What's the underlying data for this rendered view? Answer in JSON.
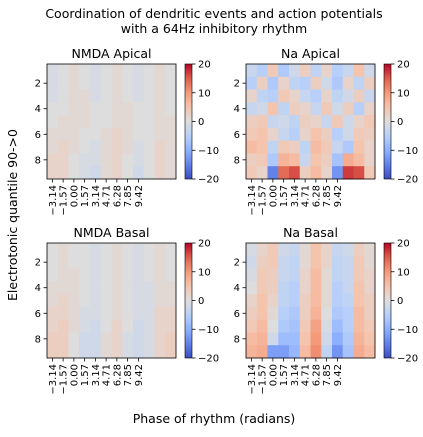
{
  "figure": {
    "title_line1": "Coordination of dendritic events and action potentials",
    "title_line2": "with a 64Hz inhibitory rhythm",
    "ylabel": "Electrotonic quantile 90->0",
    "xlabel": "Phase of rhythm (radians)"
  },
  "chart_data": [
    {
      "type": "heatmap",
      "title": "NMDA Apical",
      "x_ticks": [
        "−3.14",
        "−1.57",
        "0.00",
        "1.57",
        "3.14",
        "4.71",
        "6.28",
        "7.85",
        "9.42"
      ],
      "y_ticks": [
        "2",
        "4",
        "6",
        "8"
      ],
      "colorbar_ticks": [
        "20",
        "10",
        "0",
        "−10",
        "−20"
      ],
      "clim": [
        -20,
        20
      ],
      "colormap": "coolwarm",
      "values": [
        [
          -1,
          0,
          1,
          0,
          -1,
          0,
          1,
          0,
          -1,
          0,
          1,
          0
        ],
        [
          -1,
          0,
          1,
          0,
          -1,
          0,
          1,
          0,
          -1,
          0,
          1,
          0
        ],
        [
          -1,
          0,
          1,
          1,
          -1,
          0,
          1,
          0,
          -1,
          0,
          1,
          0
        ],
        [
          0,
          0,
          1,
          1,
          0,
          0,
          1,
          1,
          0,
          0,
          1,
          0
        ],
        [
          0,
          1,
          1,
          1,
          0,
          0,
          1,
          1,
          0,
          0,
          1,
          1
        ],
        [
          1,
          1,
          1,
          0,
          0,
          1,
          2,
          1,
          0,
          0,
          1,
          1
        ],
        [
          1,
          2,
          1,
          0,
          -1,
          1,
          2,
          1,
          -1,
          0,
          2,
          1
        ],
        [
          2,
          2,
          0,
          -1,
          -1,
          1,
          2,
          0,
          -1,
          0,
          2,
          1
        ],
        [
          2,
          2,
          0,
          -1,
          -2,
          1,
          2,
          0,
          -2,
          0,
          2,
          1
        ]
      ]
    },
    {
      "type": "heatmap",
      "title": "Na Apical",
      "x_ticks": [
        "−3.14",
        "−1.57",
        "0.00",
        "1.57",
        "3.14",
        "4.71",
        "6.28",
        "7.85",
        "9.42"
      ],
      "y_ticks": [
        "2",
        "4",
        "6",
        "8"
      ],
      "colorbar_ticks": [
        "20",
        "10",
        "0",
        "−10",
        "−20"
      ],
      "clim": [
        -20,
        20
      ],
      "colormap": "coolwarm",
      "values": [
        [
          -3,
          -5,
          4,
          -6,
          -2,
          3,
          -4,
          2,
          -5,
          -3,
          5,
          -2
        ],
        [
          -5,
          3,
          -6,
          2,
          -4,
          -5,
          3,
          -2,
          -6,
          2,
          -4,
          3
        ],
        [
          2,
          -4,
          -5,
          4,
          2,
          -3,
          -5,
          2,
          -4,
          -2,
          3,
          -3
        ],
        [
          -3,
          -2,
          5,
          -4,
          3,
          2,
          -3,
          4,
          -2,
          3,
          -5,
          2
        ],
        [
          3,
          4,
          -3,
          -2,
          -4,
          3,
          2,
          -3,
          4,
          -2,
          2,
          4
        ],
        [
          4,
          5,
          2,
          -3,
          -5,
          2,
          5,
          3,
          -5,
          -2,
          4,
          3
        ],
        [
          6,
          5,
          -4,
          4,
          3,
          -4,
          6,
          4,
          -3,
          -6,
          5,
          2
        ],
        [
          3,
          4,
          -6,
          7,
          6,
          -3,
          5,
          3,
          -7,
          8,
          6,
          2
        ],
        [
          4,
          2,
          -15,
          14,
          16,
          3,
          6,
          2,
          -13,
          17,
          16,
          4
        ]
      ]
    },
    {
      "type": "heatmap",
      "title": "NMDA Basal",
      "x_ticks": [
        "−3.14",
        "−1.57",
        "0.00",
        "1.57",
        "3.14",
        "4.71",
        "6.28",
        "7.85",
        "9.42"
      ],
      "y_ticks": [
        "2",
        "4",
        "6",
        "8"
      ],
      "colorbar_ticks": [
        "20",
        "10",
        "0",
        "−10",
        "−20"
      ],
      "clim": [
        -20,
        20
      ],
      "colormap": "coolwarm",
      "values": [
        [
          0,
          1,
          0,
          0,
          -1,
          0,
          1,
          0,
          -1,
          0,
          1,
          0
        ],
        [
          0,
          1,
          0,
          0,
          -1,
          0,
          1,
          0,
          -1,
          0,
          1,
          0
        ],
        [
          0,
          1,
          1,
          0,
          -1,
          0,
          1,
          0,
          -1,
          0,
          1,
          0
        ],
        [
          1,
          1,
          1,
          0,
          -1,
          0,
          1,
          0,
          -1,
          -1,
          1,
          1
        ],
        [
          1,
          2,
          1,
          0,
          -1,
          0,
          1,
          0,
          -1,
          -1,
          1,
          1
        ],
        [
          2,
          2,
          1,
          -1,
          -1,
          0,
          1,
          0,
          -1,
          -1,
          2,
          2
        ],
        [
          2,
          3,
          1,
          -1,
          -2,
          0,
          2,
          0,
          -2,
          -1,
          2,
          2
        ],
        [
          3,
          3,
          0,
          -2,
          -2,
          1,
          2,
          -1,
          -2,
          -1,
          2,
          3
        ],
        [
          3,
          3,
          0,
          -2,
          -2,
          1,
          2,
          -1,
          -2,
          -1,
          2,
          3
        ]
      ]
    },
    {
      "type": "heatmap",
      "title": "Na Basal",
      "x_ticks": [
        "−3.14",
        "−1.57",
        "0.00",
        "1.57",
        "3.14",
        "4.71",
        "6.28",
        "7.85",
        "9.42"
      ],
      "y_ticks": [
        "2",
        "4",
        "6",
        "8"
      ],
      "colorbar_ticks": [
        "20",
        "10",
        "0",
        "−10",
        "−20"
      ],
      "clim": [
        -20,
        20
      ],
      "colormap": "coolwarm",
      "values": [
        [
          -1,
          2,
          4,
          -2,
          -3,
          1,
          5,
          2,
          -3,
          -2,
          3,
          1
        ],
        [
          -2,
          3,
          4,
          -3,
          -4,
          1,
          5,
          2,
          -4,
          -3,
          4,
          1
        ],
        [
          -1,
          4,
          3,
          -3,
          -4,
          2,
          6,
          1,
          -4,
          -3,
          4,
          2
        ],
        [
          0,
          4,
          3,
          -4,
          -5,
          2,
          6,
          1,
          -5,
          -3,
          5,
          2
        ],
        [
          2,
          5,
          2,
          -4,
          -5,
          3,
          6,
          1,
          -5,
          -4,
          5,
          3
        ],
        [
          3,
          5,
          1,
          -5,
          -6,
          3,
          7,
          0,
          -6,
          -5,
          6,
          3
        ],
        [
          4,
          6,
          0,
          -6,
          -7,
          4,
          9,
          -1,
          -8,
          -5,
          6,
          4
        ],
        [
          6,
          7,
          -2,
          -8,
          -8,
          5,
          10,
          -2,
          -10,
          -6,
          7,
          5
        ],
        [
          7,
          8,
          -12,
          -12,
          -9,
          6,
          11,
          -4,
          -13,
          -7,
          8,
          6
        ]
      ]
    }
  ]
}
